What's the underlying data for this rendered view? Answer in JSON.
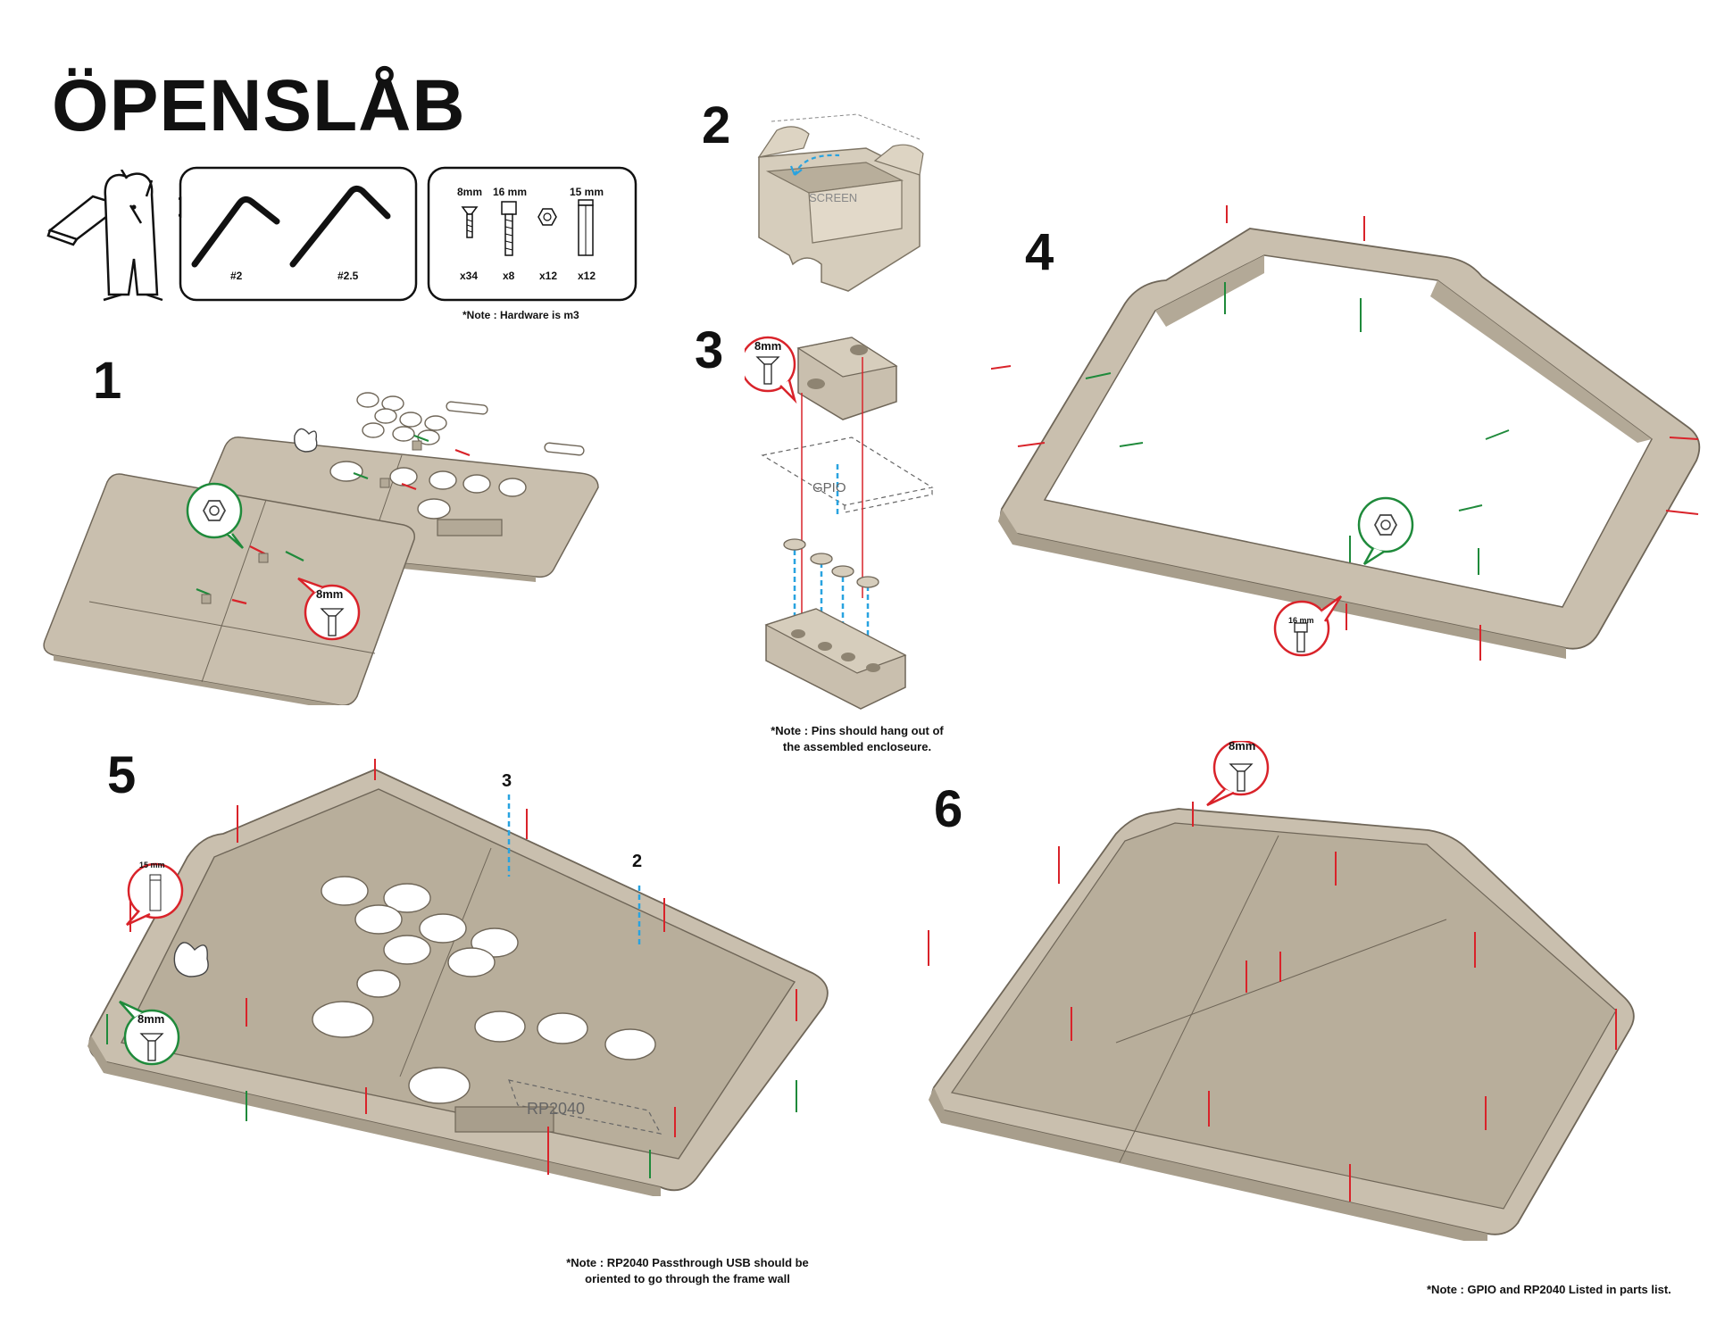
{
  "title": "ÖPENSLÅB",
  "tools": {
    "items": [
      {
        "label": "#2"
      },
      {
        "label": "#2.5"
      }
    ]
  },
  "hardware": {
    "items": [
      {
        "size": "8mm",
        "qty": "x34"
      },
      {
        "size": "16 mm",
        "qty": "x8"
      },
      {
        "size": "",
        "qty": "x12"
      },
      {
        "size": "15 mm",
        "qty": "x12"
      }
    ],
    "note": "*Note : Hardware is m3"
  },
  "steps": {
    "s1": {
      "num": "1",
      "callout": "8mm"
    },
    "s2": {
      "num": "2",
      "label": "SCREEN"
    },
    "s3": {
      "num": "3",
      "callout": "8mm",
      "label": "GPIO",
      "note_line1": "*Note : Pins should hang out of",
      "note_line2": "the assembled encloseure."
    },
    "s4": {
      "num": "4",
      "callout": "16 mm"
    },
    "s5": {
      "num": "5",
      "callout_spacer": "15 mm",
      "callout_screw": "8mm",
      "ref_a": "3",
      "ref_b": "2",
      "label": "RP2040",
      "note_line1": "*Note : RP2040 Passthrough USB should be",
      "note_line2": "oriented to go through the frame wall"
    },
    "s6": {
      "num": "6",
      "callout": "8mm",
      "note": "*Note : GPIO and RP2040 Listed in parts list."
    }
  },
  "colors": {
    "plate": "#c9bfae",
    "plate_dark": "#a89e8c",
    "red": "#d9232a",
    "green": "#1f8a3b",
    "blue": "#29a3e0"
  }
}
